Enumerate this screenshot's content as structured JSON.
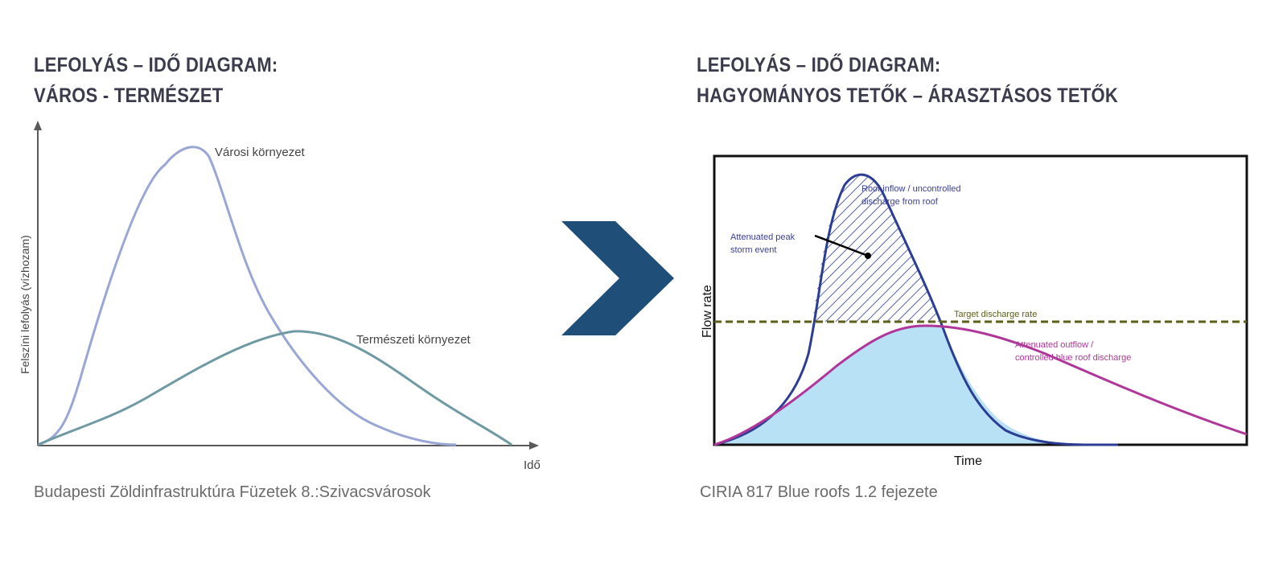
{
  "left": {
    "title_line1": "LEFOLYÁS – IDŐ DIAGRAM:",
    "title_line2": "VÁROS - TERMÉSZET",
    "y_axis_label": "Felszíni lefolyás (vízhozam)",
    "x_axis_label": "Idő",
    "urban_label": "Városi környezet",
    "natural_label": "Természeti környezet",
    "caption": "Budapesti Zöldinfrastruktúra Füzetek 8.:Szivacsvárosok",
    "colors": {
      "urban": "#9aa6d4",
      "natural": "#6f9aa3"
    }
  },
  "right": {
    "title_line1": "LEFOLYÁS – IDŐ DIAGRAM:",
    "title_line2": "HAGYOMÁNYOS TETŐK – ÁRASZTÁSOS TETŐK",
    "y_axis_label": "Flow rate",
    "x_axis_label": "Time",
    "inflow_label_1": "Roof inflow / uncontrolled",
    "inflow_label_2": "discharge from roof",
    "peak_label_1": "Attenuated peak",
    "peak_label_2": "storm event",
    "target_label": "Target discharge rate",
    "outflow_label_1": "Attenuated outflow /",
    "outflow_label_2": "controlled blue roof discharge",
    "caption": "CIRIA 817 Blue roofs 1.2 fejezete",
    "colors": {
      "inflow": "#2b3d94",
      "outflow": "#b0379a",
      "target": "#5c5e1e",
      "fill": "#b9e1f5"
    }
  },
  "arrow": {
    "icon": "chevron-right-icon",
    "color": "#1f4e79"
  }
}
